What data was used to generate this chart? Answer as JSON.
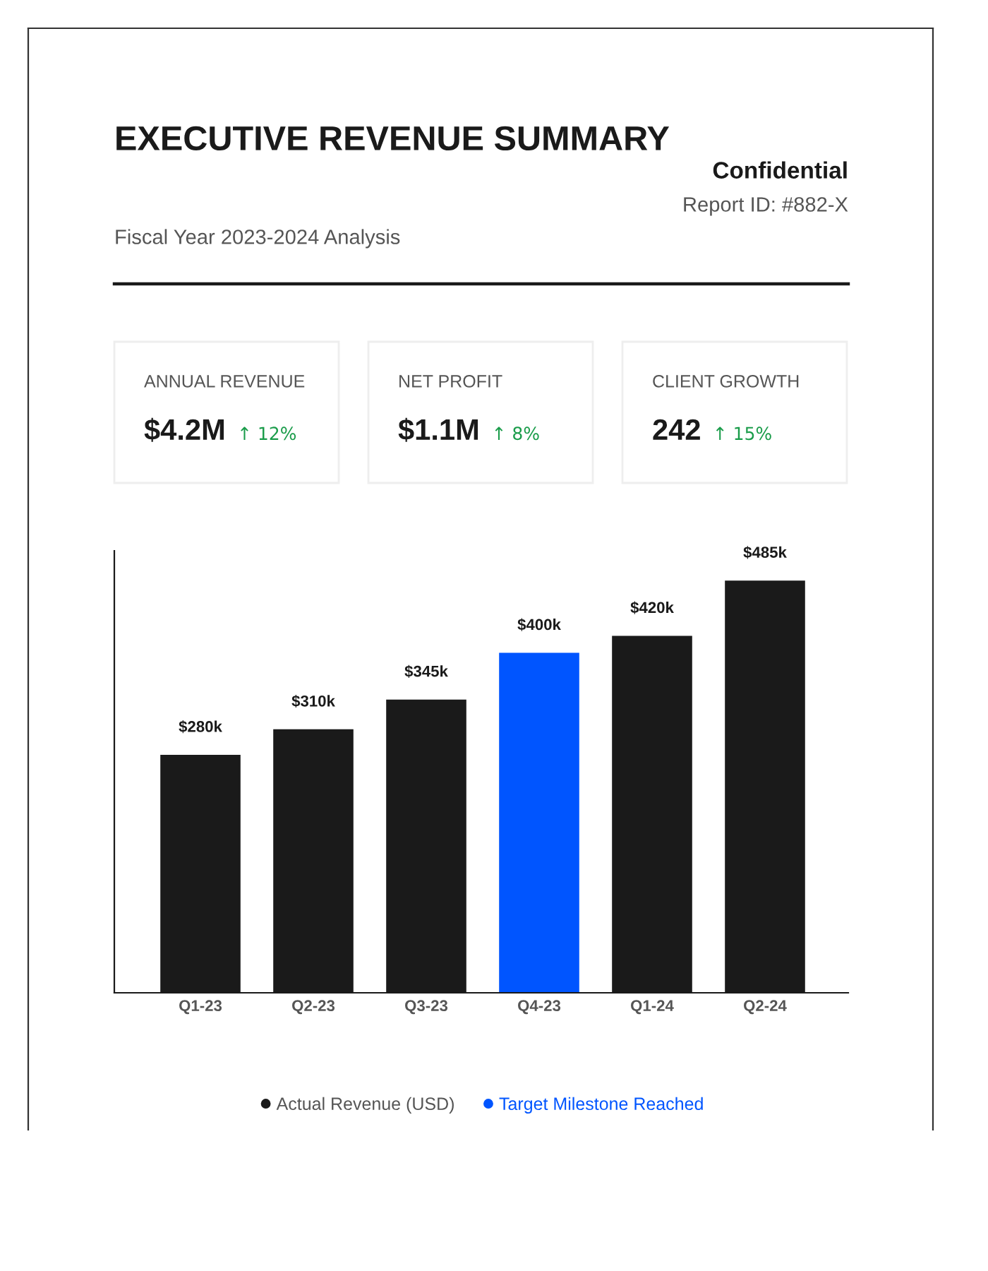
{
  "chart_data": [
    {
      "type": "other",
      "title": "EXECUTIVE REVENUE SUMMARY",
      "subtitle": "Fiscal Year 2023-2024 Analysis",
      "annotations": [
        "Confidential",
        "Report ID: #882-X",
        "ANNUAL REVENUE",
        "$4.2M",
        "↑ 12%",
        "NET PROFIT",
        "$1.1M",
        "↑ 8%",
        "CLIENT GROWTH",
        "242",
        "↑ 15%"
      ]
    },
    {
      "type": "bar",
      "categories": [
        "Q1-23",
        "Q2-23",
        "Q3-23",
        "Q4-23",
        "Q1-24",
        "Q2-24"
      ],
      "series": [
        {
          "name": "Actual Revenue (USD)",
          "color": "#1a1a1a",
          "values": [
            280,
            310,
            345,
            null,
            420,
            485
          ],
          "value_labels": [
            "$280k",
            "$310k",
            "$345k",
            null,
            "$420k",
            "$485k"
          ]
        },
        {
          "name": "Target Milestone Reached",
          "color": "#0055ff",
          "values": [
            null,
            null,
            null,
            400,
            null,
            null
          ],
          "value_labels": [
            null,
            null,
            null,
            "$400k",
            null,
            null
          ]
        }
      ],
      "ylim": [
        0,
        520
      ],
      "tick_labels": "x",
      "grid": false,
      "legend": "bottom"
    }
  ]
}
